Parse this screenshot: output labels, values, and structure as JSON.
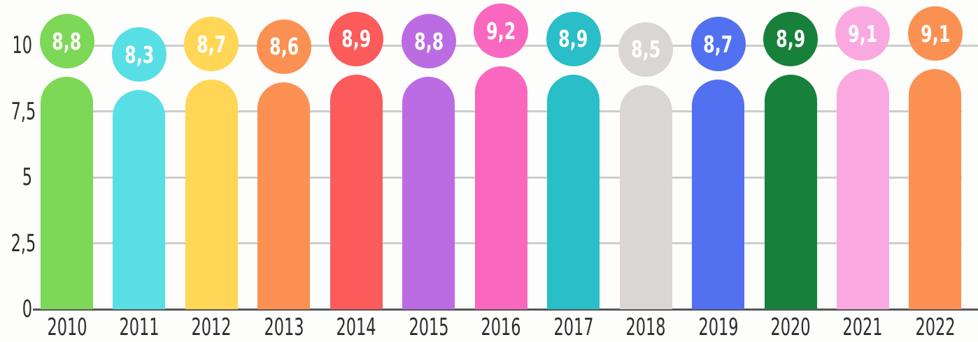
{
  "chart_data": {
    "type": "bar",
    "title": "",
    "xlabel": "",
    "ylabel": "",
    "categories": [
      "2010",
      "2011",
      "2012",
      "2013",
      "2014",
      "2015",
      "2016",
      "2017",
      "2018",
      "2019",
      "2020",
      "2021",
      "2022"
    ],
    "values": [
      8.8,
      8.3,
      8.7,
      8.6,
      8.9,
      8.8,
      9.2,
      8.9,
      8.5,
      8.7,
      8.9,
      9.1,
      9.1
    ],
    "value_labels": [
      "8,8",
      "8,3",
      "8,7",
      "8,6",
      "8,9",
      "8,8",
      "9,2",
      "8,9",
      "8,5",
      "8,7",
      "8,9",
      "9,1",
      "9,1"
    ],
    "bar_colors": [
      "#7CD856",
      "#58DFE5",
      "#FFD655",
      "#FA9153",
      "#FB5B5B",
      "#BC6CE3",
      "#FA67BF",
      "#29BEC8",
      "#D9D6D3",
      "#5271F0",
      "#17803A",
      "#FAA9E0",
      "#FA9153"
    ],
    "ylim": [
      0,
      10.5
    ],
    "yticks": [
      0,
      2.5,
      5,
      7.5,
      10
    ],
    "ytick_labels": [
      "0",
      "2,5",
      "5",
      "7,5",
      "10"
    ],
    "grid": true,
    "legend": false,
    "decimal_separator": ",",
    "colors": {
      "background": "#FDFDFC",
      "gridline": "#CDCDCD",
      "baseline": "#55555A",
      "axis_label_text": "#2D2D2D",
      "bubble_text": "#FFFFFF"
    }
  }
}
